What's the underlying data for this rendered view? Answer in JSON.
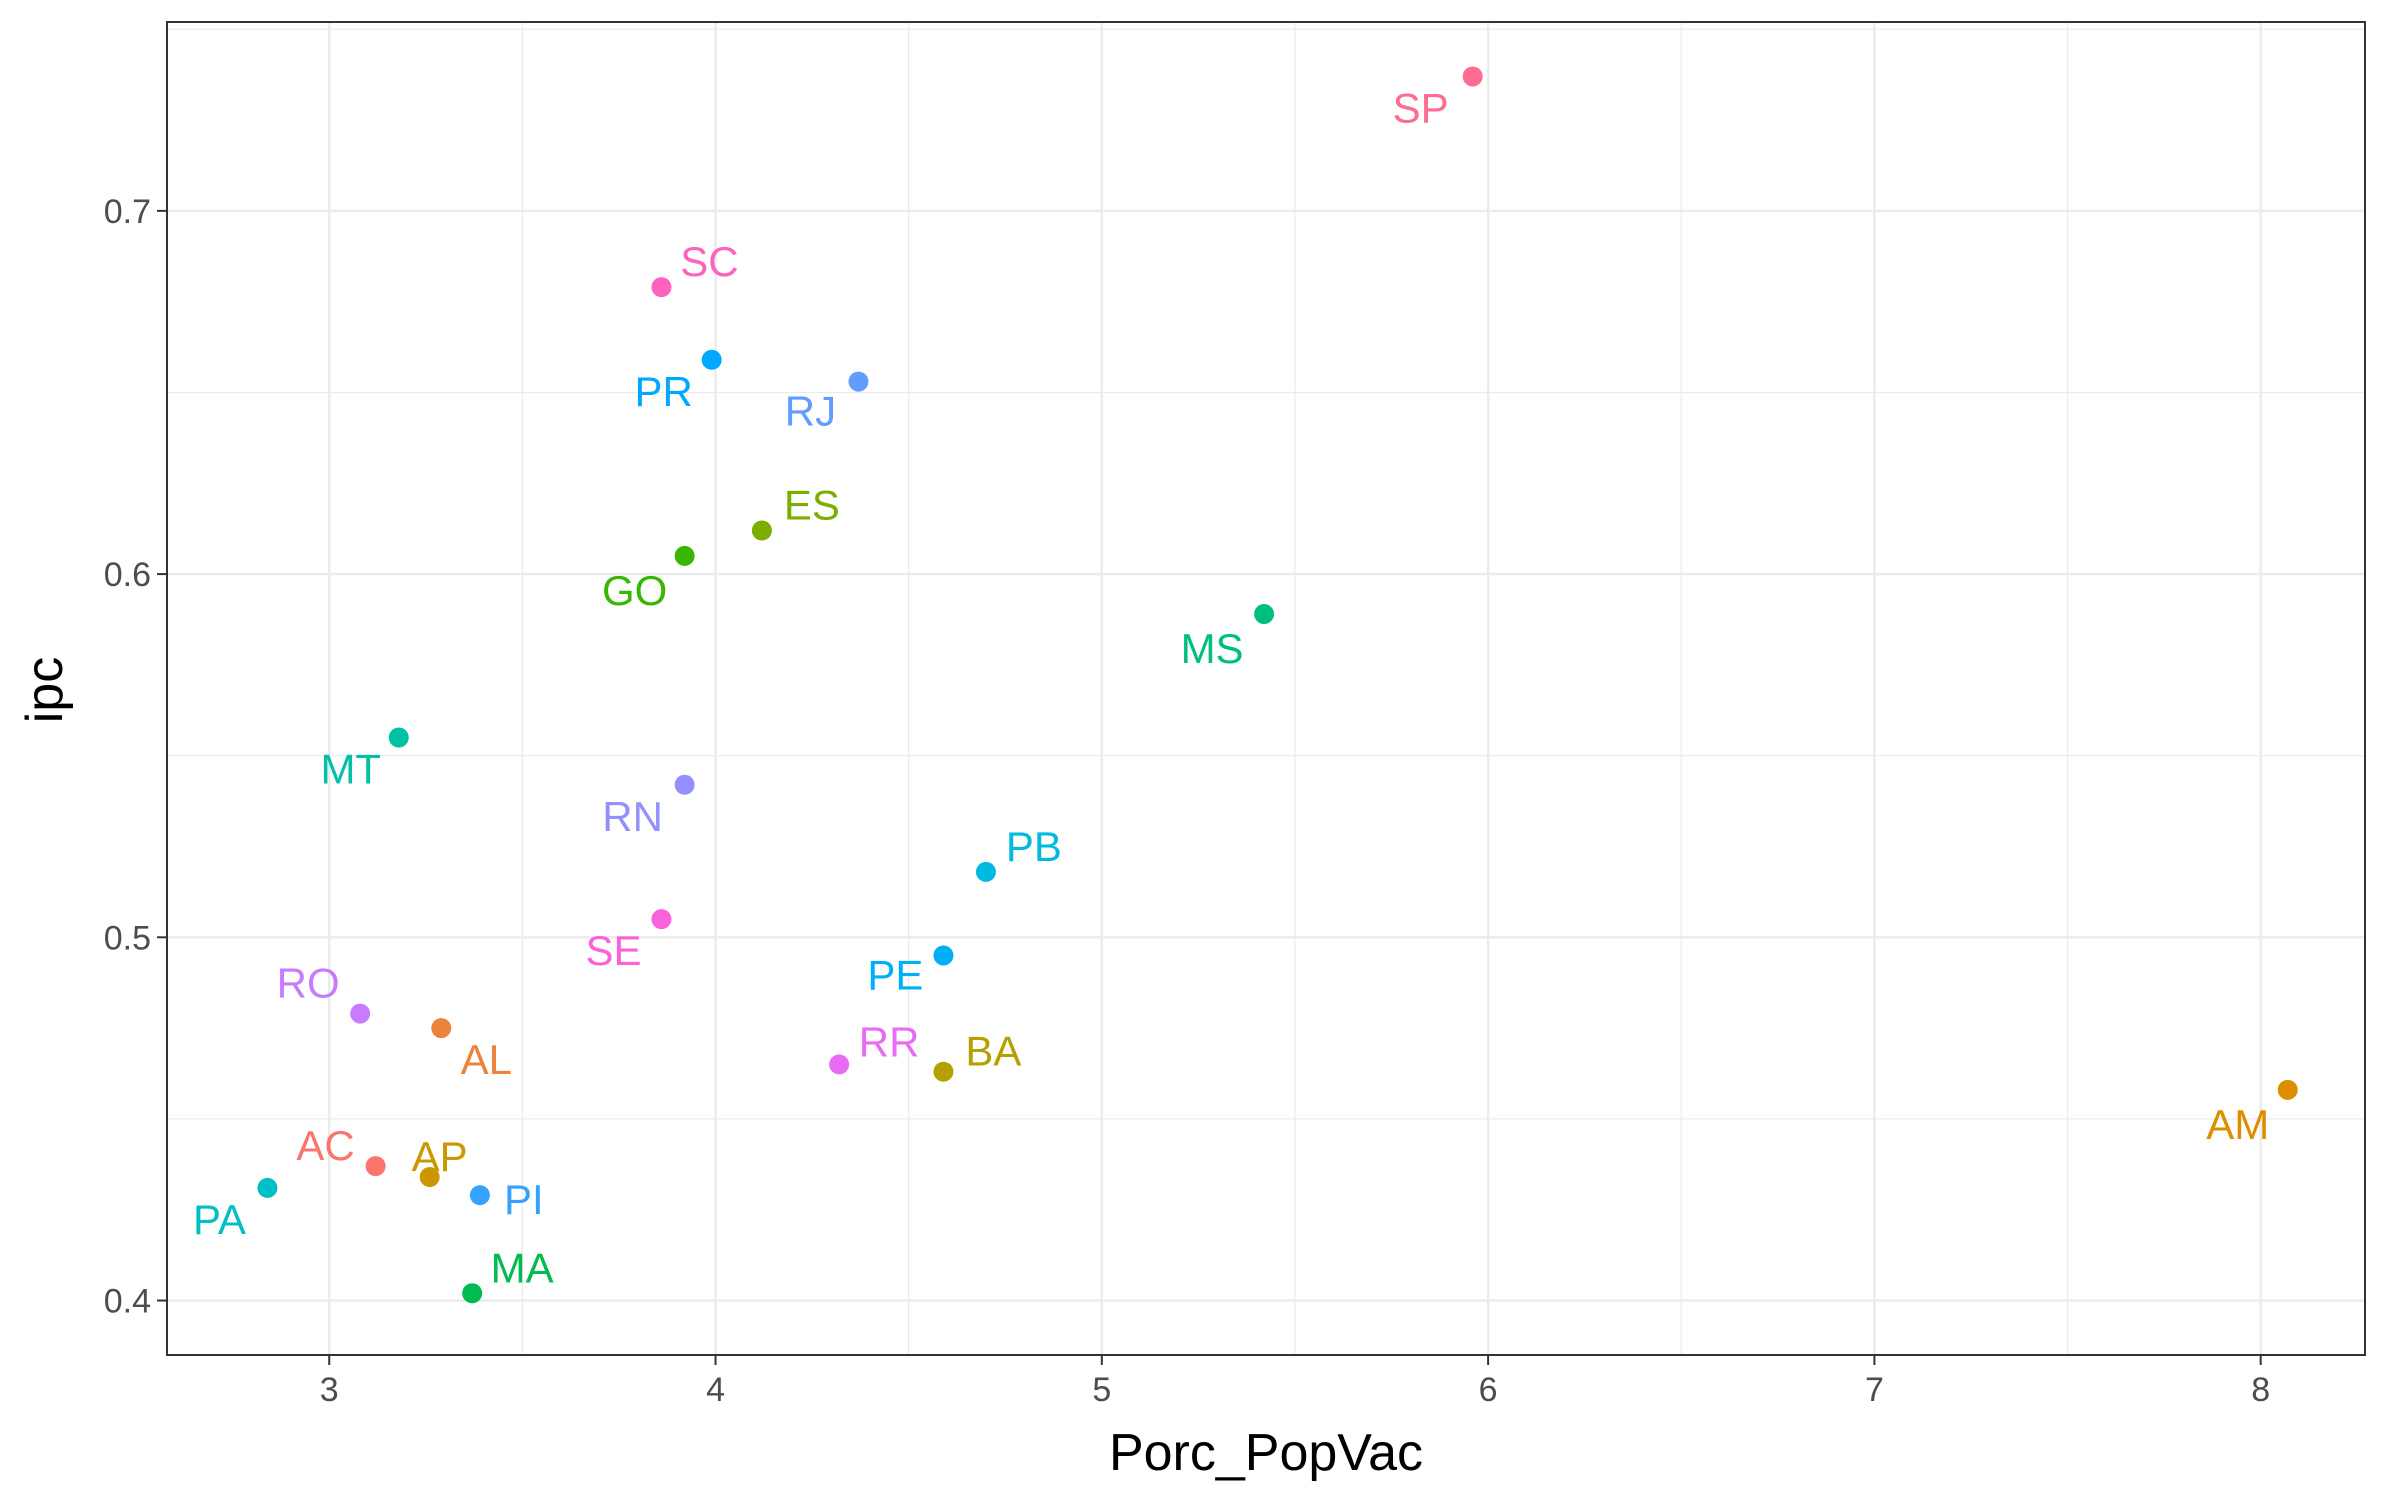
{
  "chart_data": {
    "type": "scatter",
    "xlabel": "Porc_PopVac",
    "ylabel": "ipc",
    "xlim": [
      2.58,
      8.27
    ],
    "ylim": [
      0.385,
      0.752
    ],
    "xticks": [
      3,
      4,
      5,
      6,
      7,
      8
    ],
    "xtick_labels": [
      "3",
      "4",
      "5",
      "6",
      "7",
      "8"
    ],
    "yticks": [
      0.4,
      0.5,
      0.6,
      0.7
    ],
    "ytick_labels": [
      "0.4",
      "0.5",
      "0.6",
      "0.7"
    ],
    "grid": true,
    "legend": "none",
    "points": [
      {
        "label": "AC",
        "x": 3.12,
        "y": 0.437,
        "color": "#F8766D"
      },
      {
        "label": "AL",
        "x": 3.29,
        "y": 0.475,
        "color": "#EC823C"
      },
      {
        "label": "AM",
        "x": 8.07,
        "y": 0.458,
        "color": "#DD8D00"
      },
      {
        "label": "AP",
        "x": 3.26,
        "y": 0.434,
        "color": "#CA9700"
      },
      {
        "label": "BA",
        "x": 4.59,
        "y": 0.463,
        "color": "#B4A000"
      },
      {
        "label": "ES",
        "x": 4.12,
        "y": 0.612,
        "color": "#7CAE00"
      },
      {
        "label": "GO",
        "x": 3.92,
        "y": 0.605,
        "color": "#39B600"
      },
      {
        "label": "MA",
        "x": 3.37,
        "y": 0.402,
        "color": "#00BB4E"
      },
      {
        "label": "MS",
        "x": 5.42,
        "y": 0.589,
        "color": "#00BF7D"
      },
      {
        "label": "MT",
        "x": 3.18,
        "y": 0.555,
        "color": "#00C1A3"
      },
      {
        "label": "PA",
        "x": 2.84,
        "y": 0.431,
        "color": "#00BFC4"
      },
      {
        "label": "PB",
        "x": 4.7,
        "y": 0.518,
        "color": "#00BAE0"
      },
      {
        "label": "PE",
        "x": 4.59,
        "y": 0.495,
        "color": "#00B0F6"
      },
      {
        "label": "PI",
        "x": 3.39,
        "y": 0.429,
        "color": "#35A2FF"
      },
      {
        "label": "PR",
        "x": 3.99,
        "y": 0.659,
        "color": "#00A8FF"
      },
      {
        "label": "RJ",
        "x": 4.37,
        "y": 0.653,
        "color": "#619CFF"
      },
      {
        "label": "RN",
        "x": 3.92,
        "y": 0.542,
        "color": "#9590FF"
      },
      {
        "label": "RO",
        "x": 3.08,
        "y": 0.479,
        "color": "#C77CFF"
      },
      {
        "label": "RR",
        "x": 4.32,
        "y": 0.465,
        "color": "#E76BF3"
      },
      {
        "label": "SC",
        "x": 3.86,
        "y": 0.679,
        "color": "#FF62BC"
      },
      {
        "label": "SE",
        "x": 3.86,
        "y": 0.505,
        "color": "#FA62DB"
      },
      {
        "label": "SP",
        "x": 5.96,
        "y": 0.737,
        "color": "#FF6C91"
      }
    ]
  }
}
